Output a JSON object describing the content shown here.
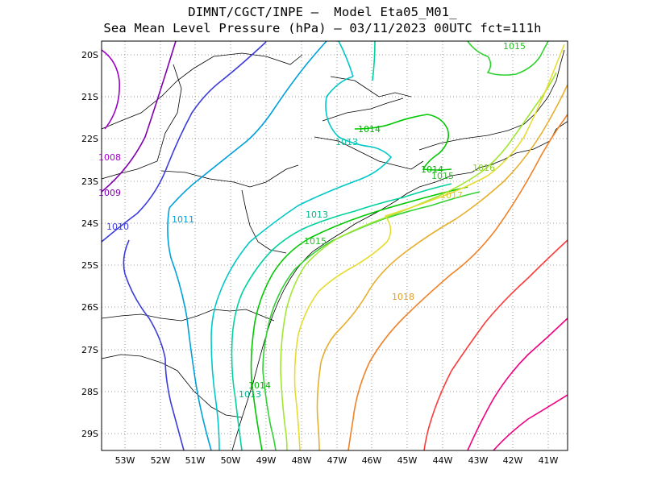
{
  "header": {
    "line1": "DIMNT/CGCT/INPE –  Model Eta05_M01_",
    "line2": "Sea Mean Level Pressure (hPa) – 03/11/2023 00UTC fct=111h"
  },
  "axes": {
    "lat_labels": [
      "20S",
      "21S",
      "22S",
      "23S",
      "24S",
      "25S",
      "26S",
      "27S",
      "28S",
      "29S"
    ],
    "lon_labels": [
      "53W",
      "52W",
      "51W",
      "50W",
      "49W",
      "48W",
      "47W",
      "46W",
      "45W",
      "44W",
      "43W",
      "42W",
      "41W"
    ]
  },
  "contour_labels": {
    "c1008": "1008",
    "c1009": "1009",
    "c1010": "1010",
    "c1011": "1011",
    "c1013a": "1013",
    "c1013b": "1013",
    "c1013c": "1013",
    "c1014a": "1014",
    "c1014b": "1014",
    "c1014c": "1014",
    "c1015a": "1015",
    "c1015b": "1015",
    "c1015c": "1015",
    "c1016": "1016",
    "c1017": "1017",
    "c1018": "1018"
  },
  "colors": {
    "c1008": "#a000c8",
    "c1009": "#8000b0",
    "c1010": "#3c3cdc",
    "c1011": "#00a0dc",
    "c1012": "#00c8c8",
    "c1013": "#00d2a0",
    "c1014": "#00c800",
    "c1015": "#32d232",
    "c1016": "#a0e632",
    "c1017": "#e6dc32",
    "c1018": "#e6af2d",
    "c1019": "#f08228",
    "c1020": "#fa3c3c",
    "c1021": "#f00082"
  }
}
